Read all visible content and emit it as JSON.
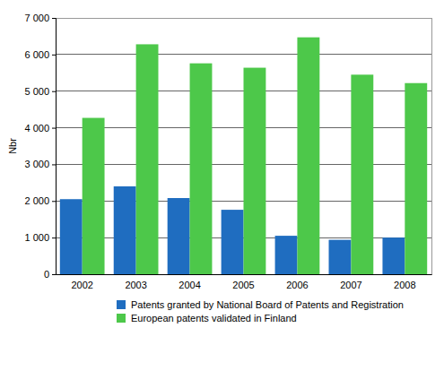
{
  "chart_data": {
    "type": "bar",
    "y_label": "Nbr",
    "categories": [
      "2002",
      "2003",
      "2004",
      "2005",
      "2006",
      "2007",
      "2008"
    ],
    "series": [
      {
        "name": "Patents granted by National Board of Patents and Registration",
        "color": "#1f6dc0",
        "values": [
          2050,
          2400,
          2080,
          1760,
          1050,
          940,
          1000
        ]
      },
      {
        "name": "European patents validated in Finland",
        "color": "#4dc84a",
        "values": [
          4270,
          6280,
          5760,
          5640,
          6470,
          5450,
          5220
        ]
      }
    ],
    "ylim": [
      0,
      7000
    ],
    "yticks": [
      0,
      {
        "value": 1000,
        "label": "1 000"
      },
      {
        "value": 2000,
        "label": "2 000"
      },
      {
        "value": 3000,
        "label": "3 000"
      },
      {
        "value": 4000,
        "label": "4 000"
      },
      {
        "value": 5000,
        "label": "5 000"
      },
      {
        "value": 6000,
        "label": "6 000"
      },
      {
        "value": 7000,
        "label": "7 000"
      }
    ],
    "grid": true,
    "legend": "bottom"
  }
}
